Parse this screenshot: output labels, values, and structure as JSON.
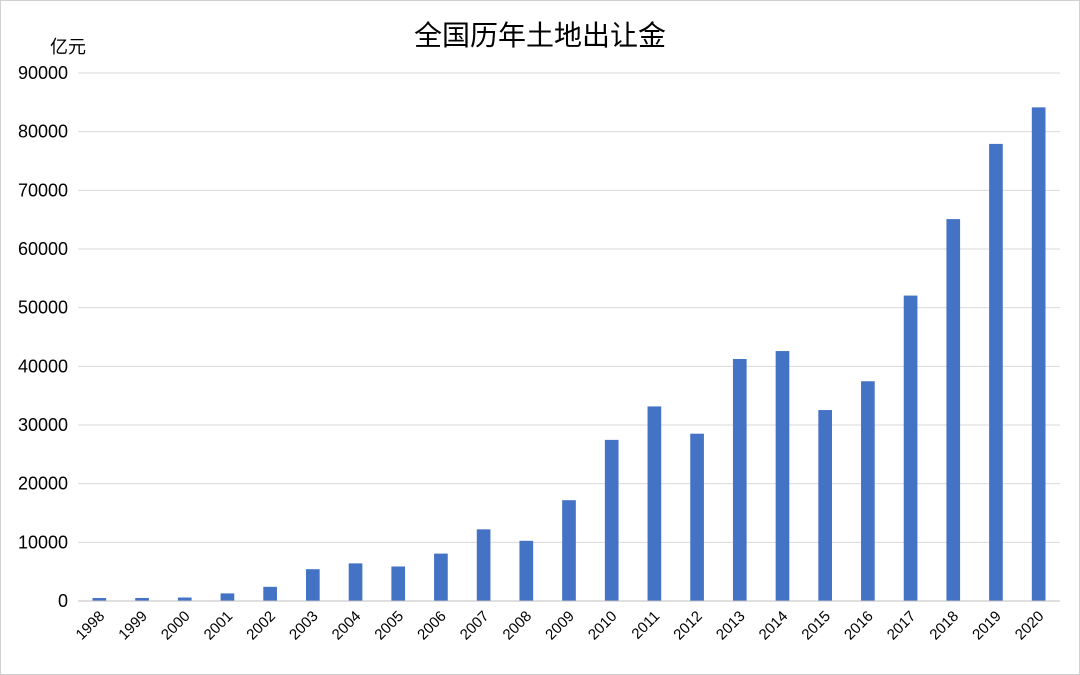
{
  "chart_data": {
    "type": "bar",
    "title": "全国历年土地出让金",
    "ylabel": "亿元",
    "xlabel": "",
    "ylim": [
      0,
      90000
    ],
    "yticks": [
      "0",
      "10000",
      "20000",
      "30000",
      "40000",
      "50000",
      "60000",
      "70000",
      "80000",
      "90000"
    ],
    "grid": true,
    "legend": "none",
    "bar_color": "#4472C4",
    "categories": [
      "1998",
      "1999",
      "2000",
      "2001",
      "2002",
      "2003",
      "2004",
      "2005",
      "2006",
      "2007",
      "2008",
      "2009",
      "2010",
      "2011",
      "2012",
      "2013",
      "2014",
      "2015",
      "2016",
      "2017",
      "2018",
      "2019",
      "2020"
    ],
    "values": [
      507,
      514,
      596,
      1296,
      2417,
      5421,
      6412,
      5884,
      8078,
      12217,
      10260,
      17180,
      27464,
      33166,
      28517,
      41250,
      42606,
      32547,
      37457,
      52059,
      65096,
      77914,
      84142
    ]
  }
}
